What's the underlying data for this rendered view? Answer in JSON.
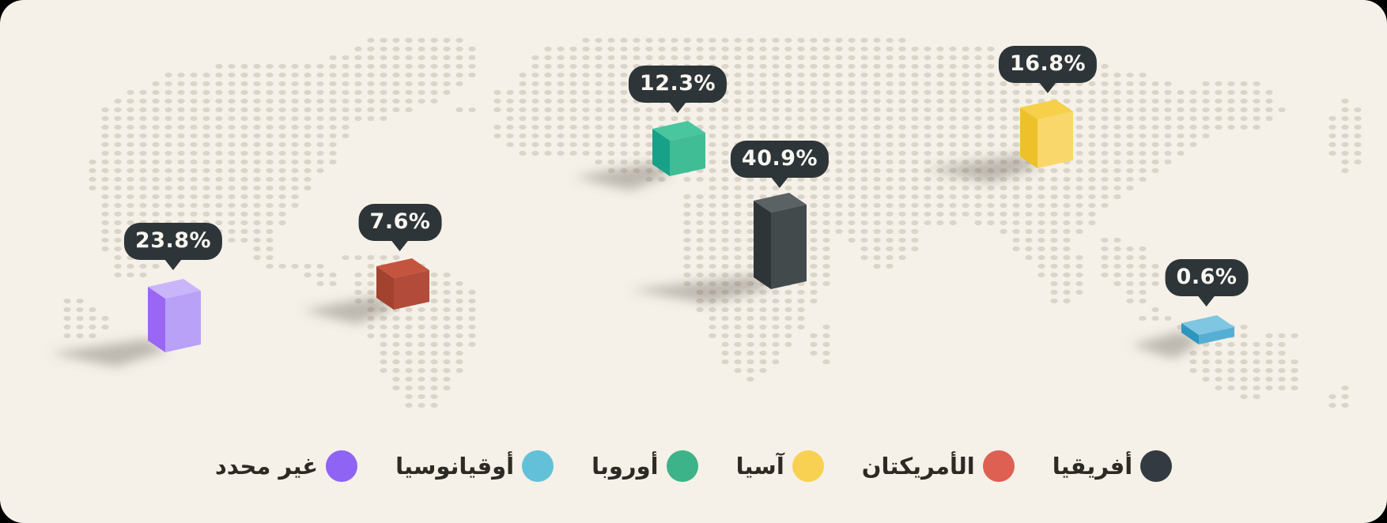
{
  "page": {
    "kind": "infographic",
    "background_color": "#f5f1e9",
    "outside_color": "#000000"
  },
  "chart_data": {
    "type": "bar",
    "variant": "3d-bars-on-dotted-world-map",
    "unit": "%",
    "legend_position": "bottom",
    "map": {
      "style": "dotted-world-map",
      "dot_color": "#dbd5c9"
    },
    "bubble_style": {
      "background": "#2d3538",
      "text_color": "#f8f6f1"
    },
    "series": [
      {
        "id": "africa",
        "label": "أفريقيا",
        "value": 40.9,
        "display": "40.9%",
        "color": "#333a42",
        "faces": {
          "top": "#5a6264",
          "left": "#2e3538",
          "right": "#424a4c"
        }
      },
      {
        "id": "americas",
        "label": "الأمريكتان",
        "value": 7.6,
        "display": "7.6%",
        "color": "#dd6052",
        "faces": {
          "top": "#c5543f",
          "left": "#a2422f",
          "right": "#b34b3a"
        }
      },
      {
        "id": "asia",
        "label": "آسيا",
        "value": 16.8,
        "display": "16.8%",
        "color": "#f8d153",
        "faces": {
          "top": "#f6d049",
          "left": "#eec02a",
          "right": "#f9d76a"
        }
      },
      {
        "id": "europe",
        "label": "أوروبا",
        "value": 12.3,
        "display": "12.3%",
        "color": "#3cb389",
        "faces": {
          "top": "#49c69e",
          "left": "#17a188",
          "right": "#41bd96"
        }
      },
      {
        "id": "oceania",
        "label": "أوقيانوسيا",
        "value": 0.6,
        "display": "0.6%",
        "color": "#62c1d8",
        "faces": {
          "top": "#7fc6e2",
          "left": "#2e96be",
          "right": "#55aed4"
        }
      },
      {
        "id": "unspecified",
        "label": "غير محدد",
        "value": 23.8,
        "display": "23.8%",
        "color": "#8f63f3",
        "faces": {
          "top": "#c9b5fa",
          "left": "#9a67f5",
          "right": "#b9a1f8"
        }
      }
    ]
  }
}
